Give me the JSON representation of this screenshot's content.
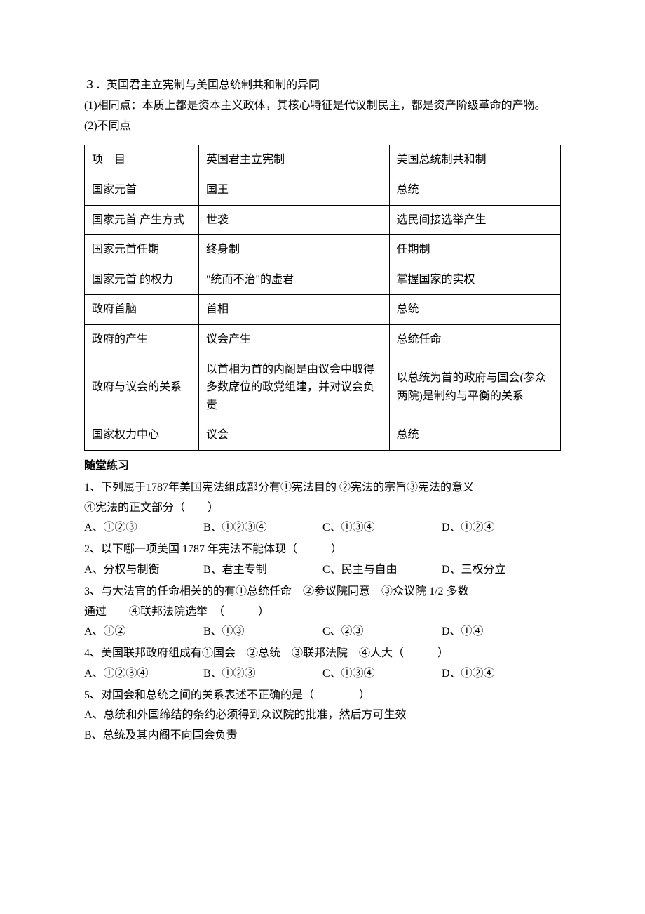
{
  "section3": {
    "title": "３．英国君主立宪制与美国总统制共和制的异同",
    "p1": "(1)相同点：本质上都是资本主义政体，其核心特征是代议制民主，都是资产阶级革命的产物。",
    "p2": "(2)不同点"
  },
  "table": {
    "columns": [
      "项　目",
      "英国君主立宪制",
      "美国总统制共和制"
    ],
    "rows": [
      [
        "国家元首",
        "国王",
        "总统"
      ],
      [
        "国家元首 产生方式",
        "世袭",
        "选民间接选举产生"
      ],
      [
        "国家元首任期",
        "终身制",
        "任期制"
      ],
      [
        "国家元首 的权力",
        "\"统而不治\"的虚君",
        "掌握国家的实权"
      ],
      [
        "政府首脑",
        "首相",
        "总统"
      ],
      [
        "政府的产生",
        "议会产生",
        "总统任命"
      ],
      [
        "政府与议会的关系",
        "以首相为首的内阁是由议会中取得多数席位的政党组建，并对议会负责",
        "以总统为首的政府与国会(参众两院)是制约与平衡的关系"
      ],
      [
        "国家权力中心",
        "议会",
        "总统"
      ]
    ]
  },
  "practice": {
    "heading": "随堂练习",
    "q1": {
      "stem": "1、下列属于1787年美国宪法组成部分有①宪法目的 ②宪法的宗旨③宪法的意义",
      "stem2": "④宪法的正文部分（　　）",
      "A": "A、①②③",
      "B": "B、①②③④",
      "C": "C、①③④",
      "D": "D、①②④"
    },
    "q2": {
      "stem": "2、以下哪一项美国 1787 年宪法不能体现（　　　）",
      "A": "A、分权与制衡",
      "B": "B、君主专制",
      "C": "C、民主与自由",
      "D": "D、三权分立"
    },
    "q3": {
      "stem": "3、与大法官的任命相关的的有①总统任命　②参议院同意　③众议院 1/2 多数",
      "stem2": "通过　　④联邦法院选举　（　　　）",
      "A": "A、①②",
      "B": "B、①③",
      "C": "C、②③",
      "D": "D、①④"
    },
    "q4": {
      "stem": "4、美国联邦政府组成有①国会　②总统　③联邦法院　④人大（　　　）",
      "A": "A、①②③④",
      "B": "B、①②③",
      "C": "C、①③④",
      "D": "D、①②④"
    },
    "q5": {
      "stem": "5、对国会和总统之间的关系表述不正确的是（　　　　）",
      "A": "A、总统和外国缔结的条约必须得到众议院的批准，然后方可生效",
      "B": "B、总统及其内阁不向国会负责"
    }
  }
}
